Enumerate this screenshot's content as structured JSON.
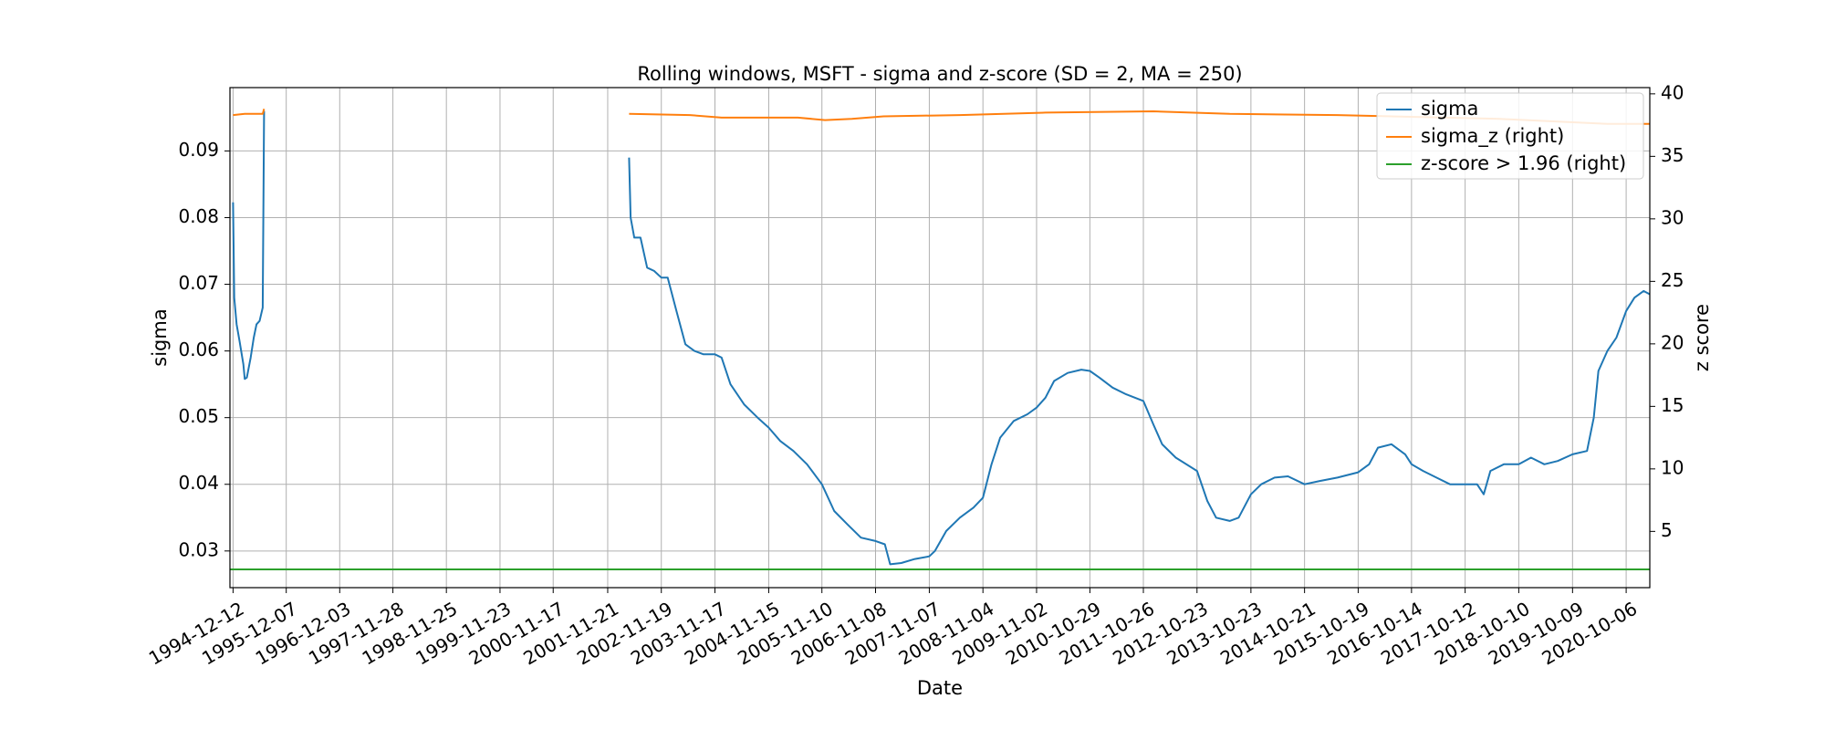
{
  "chart_data": {
    "type": "line",
    "title": "Rolling windows, MSFT - sigma and z-score (SD = 2, MA = 250)",
    "xlabel": "Date",
    "ylabel": "sigma",
    "ylabel_right": "z score",
    "grid": true,
    "legend_position": "top-right",
    "xlim": [
      "1994-11-21",
      "2021-03-15"
    ],
    "ylim": [
      0.0245,
      0.0995
    ],
    "ylim_right": [
      0.5,
      40.5
    ],
    "xticks": [
      "1994-12-12",
      "1995-12-07",
      "1996-12-03",
      "1997-11-28",
      "1998-11-25",
      "1999-11-23",
      "2000-11-17",
      "2001-11-21",
      "2002-11-19",
      "2003-11-17",
      "2004-11-15",
      "2005-11-10",
      "2006-11-08",
      "2007-11-07",
      "2008-11-04",
      "2009-11-02",
      "2010-10-29",
      "2011-10-26",
      "2012-10-23",
      "2013-10-23",
      "2014-10-21",
      "2015-10-19",
      "2016-10-14",
      "2017-10-12",
      "2018-10-10",
      "2019-10-09",
      "2020-10-06"
    ],
    "yticks_left": [
      "0.03",
      "0.04",
      "0.05",
      "0.06",
      "0.07",
      "0.08",
      "0.09"
    ],
    "yticks_right": [
      "5",
      "10",
      "15",
      "20",
      "25",
      "30",
      "35",
      "40"
    ],
    "series": [
      {
        "name": "sigma",
        "axis": "left",
        "color": "#1f77b4",
        "segments": [
          [
            [
              "1994-12-12",
              0.0823
            ],
            [
              "1994-12-20",
              0.068
            ],
            [
              "1995-01-05",
              0.064
            ],
            [
              "1995-01-25",
              0.0615
            ],
            [
              "1995-02-20",
              0.058
            ],
            [
              "1995-03-01",
              0.0558
            ],
            [
              "1995-03-15",
              0.056
            ],
            [
              "1995-04-10",
              0.059
            ],
            [
              "1995-05-01",
              0.062
            ],
            [
              "1995-05-20",
              0.064
            ],
            [
              "1995-06-10",
              0.0645
            ],
            [
              "1995-07-01",
              0.0665
            ],
            [
              "1995-07-10",
              0.096
            ]
          ],
          [
            [
              "2002-04-15",
              0.089
            ],
            [
              "2002-04-25",
              0.08
            ],
            [
              "2002-05-20",
              0.077
            ],
            [
              "2002-07-01",
              0.077
            ],
            [
              "2002-08-15",
              0.0725
            ],
            [
              "2002-10-01",
              0.072
            ],
            [
              "2002-11-19",
              0.071
            ],
            [
              "2003-01-01",
              0.071
            ],
            [
              "2003-03-01",
              0.066
            ],
            [
              "2003-05-01",
              0.061
            ],
            [
              "2003-07-01",
              0.06
            ],
            [
              "2003-09-01",
              0.0595
            ],
            [
              "2003-11-17",
              0.0595
            ],
            [
              "2004-01-01",
              0.059
            ],
            [
              "2004-03-01",
              0.055
            ],
            [
              "2004-06-01",
              0.052
            ],
            [
              "2004-09-01",
              0.05
            ],
            [
              "2004-11-15",
              0.0485
            ],
            [
              "2005-02-01",
              0.0465
            ],
            [
              "2005-05-01",
              0.045
            ],
            [
              "2005-08-01",
              0.043
            ],
            [
              "2005-11-10",
              0.04
            ],
            [
              "2006-02-01",
              0.036
            ],
            [
              "2006-05-01",
              0.034
            ],
            [
              "2006-08-01",
              0.032
            ],
            [
              "2006-11-08",
              0.0315
            ],
            [
              "2007-01-10",
              0.031
            ],
            [
              "2007-02-15",
              0.028
            ],
            [
              "2007-05-01",
              0.0282
            ],
            [
              "2007-08-01",
              0.0288
            ],
            [
              "2007-11-07",
              0.0292
            ],
            [
              "2007-12-15",
              0.03
            ],
            [
              "2008-03-01",
              0.033
            ],
            [
              "2008-06-01",
              0.035
            ],
            [
              "2008-09-01",
              0.0365
            ],
            [
              "2008-11-04",
              0.038
            ],
            [
              "2009-01-01",
              0.043
            ],
            [
              "2009-03-01",
              0.047
            ],
            [
              "2009-06-01",
              0.0495
            ],
            [
              "2009-09-01",
              0.0505
            ],
            [
              "2009-11-02",
              0.0515
            ],
            [
              "2010-01-01",
              0.053
            ],
            [
              "2010-03-01",
              0.0555
            ],
            [
              "2010-06-01",
              0.0567
            ],
            [
              "2010-09-01",
              0.0572
            ],
            [
              "2010-10-29",
              0.057
            ],
            [
              "2011-01-01",
              0.056
            ],
            [
              "2011-04-01",
              0.0545
            ],
            [
              "2011-07-01",
              0.0535
            ],
            [
              "2011-10-26",
              0.0525
            ],
            [
              "2012-01-01",
              0.049
            ],
            [
              "2012-03-01",
              0.046
            ],
            [
              "2012-06-01",
              0.044
            ],
            [
              "2012-10-23",
              0.042
            ],
            [
              "2013-01-01",
              0.0375
            ],
            [
              "2013-03-01",
              0.035
            ],
            [
              "2013-06-01",
              0.0345
            ],
            [
              "2013-08-01",
              0.035
            ],
            [
              "2013-10-23",
              0.0385
            ],
            [
              "2014-01-01",
              0.04
            ],
            [
              "2014-04-01",
              0.041
            ],
            [
              "2014-07-01",
              0.0412
            ],
            [
              "2014-10-21",
              0.04
            ],
            [
              "2015-02-01",
              0.0405
            ],
            [
              "2015-06-01",
              0.041
            ],
            [
              "2015-10-19",
              0.0418
            ],
            [
              "2016-01-01",
              0.043
            ],
            [
              "2016-03-01",
              0.0455
            ],
            [
              "2016-06-01",
              0.046
            ],
            [
              "2016-09-01",
              0.0445
            ],
            [
              "2016-10-14",
              0.043
            ],
            [
              "2017-01-01",
              0.042
            ],
            [
              "2017-04-01",
              0.041
            ],
            [
              "2017-07-01",
              0.04
            ],
            [
              "2017-10-12",
              0.04
            ],
            [
              "2018-01-01",
              0.04
            ],
            [
              "2018-02-15",
              0.0385
            ],
            [
              "2018-04-01",
              0.042
            ],
            [
              "2018-07-01",
              0.043
            ],
            [
              "2018-10-10",
              0.043
            ],
            [
              "2019-01-01",
              0.044
            ],
            [
              "2019-04-01",
              0.043
            ],
            [
              "2019-07-01",
              0.0435
            ],
            [
              "2019-10-09",
              0.0445
            ],
            [
              "2020-01-15",
              0.045
            ],
            [
              "2020-03-01",
              0.05
            ],
            [
              "2020-04-01",
              0.057
            ],
            [
              "2020-06-01",
              0.06
            ],
            [
              "2020-08-01",
              0.062
            ],
            [
              "2020-10-06",
              0.066
            ],
            [
              "2020-12-01",
              0.068
            ],
            [
              "2021-02-01",
              0.069
            ],
            [
              "2021-03-15",
              0.0685
            ]
          ]
        ]
      },
      {
        "name": "sigma_z (right)",
        "axis": "right",
        "color": "#ff7f0e",
        "segments": [
          [
            [
              "1994-12-12",
              38.3
            ],
            [
              "1995-03-01",
              38.4
            ],
            [
              "1995-07-01",
              38.4
            ],
            [
              "1995-07-10",
              38.8
            ]
          ],
          [
            [
              "2002-04-15",
              38.4
            ],
            [
              "2003-06-01",
              38.3
            ],
            [
              "2004-01-01",
              38.1
            ],
            [
              "2005-06-01",
              38.1
            ],
            [
              "2005-12-01",
              37.9
            ],
            [
              "2006-06-01",
              38.0
            ],
            [
              "2007-01-01",
              38.2
            ],
            [
              "2008-06-01",
              38.3
            ],
            [
              "2010-01-01",
              38.5
            ],
            [
              "2012-01-01",
              38.6
            ],
            [
              "2013-06-01",
              38.4
            ],
            [
              "2015-06-01",
              38.3
            ],
            [
              "2017-06-01",
              38.1
            ],
            [
              "2018-06-01",
              38.0
            ],
            [
              "2019-06-01",
              37.8
            ],
            [
              "2020-06-01",
              37.6
            ],
            [
              "2021-03-15",
              37.6
            ]
          ]
        ]
      },
      {
        "name": "z-score > 1.96 (right)",
        "axis": "right",
        "color": "#2ca02c",
        "segments": [
          [
            [
              "1994-11-21",
              1.96
            ],
            [
              "2021-03-15",
              1.96
            ]
          ]
        ]
      }
    ]
  }
}
